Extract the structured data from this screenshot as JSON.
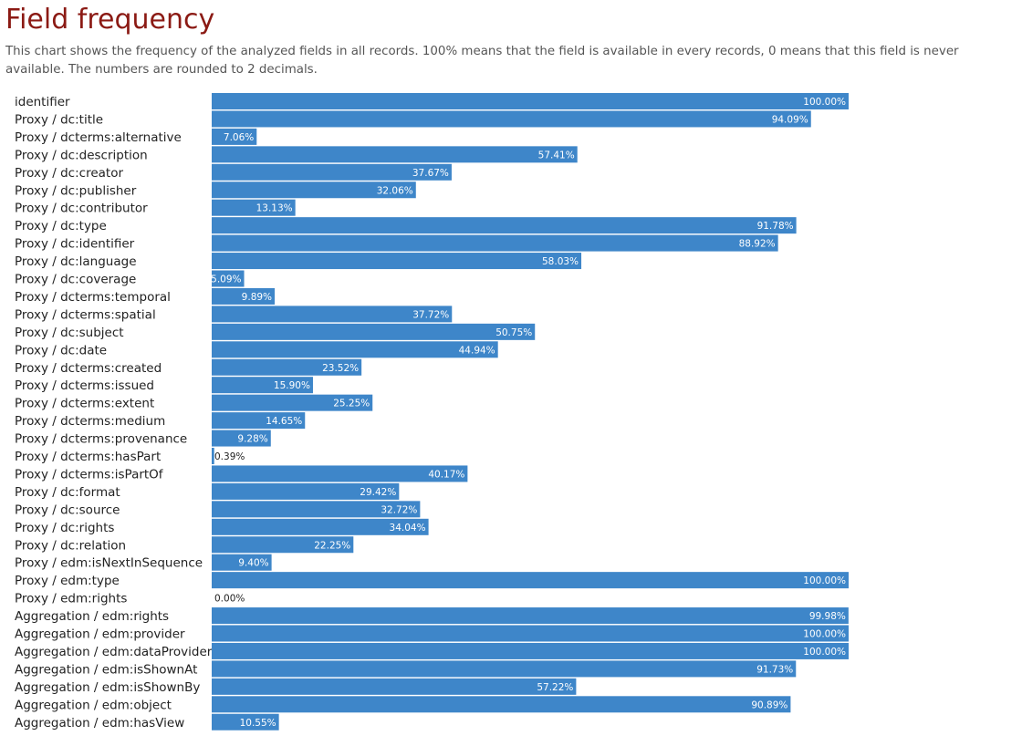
{
  "page": {
    "title": "Field frequency",
    "description": "This chart shows the frequency of the analyzed fields in all records. 100% means that the field is available in every records, 0 means that this field is never available. The numbers are rounded to 2 decimals."
  },
  "colors": {
    "bar": "#3e86c9",
    "title": "#8b1a14",
    "bar_text": "#ffffff",
    "outside_text": "#222222"
  },
  "chart_data": {
    "type": "bar",
    "orientation": "horizontal",
    "xlim": [
      0,
      100
    ],
    "unit": "%",
    "grid": false,
    "categories": [
      "identifier",
      "Proxy / dc:title",
      "Proxy / dcterms:alternative",
      "Proxy / dc:description",
      "Proxy / dc:creator",
      "Proxy / dc:publisher",
      "Proxy / dc:contributor",
      "Proxy / dc:type",
      "Proxy / dc:identifier",
      "Proxy / dc:language",
      "Proxy / dc:coverage",
      "Proxy / dcterms:temporal",
      "Proxy / dcterms:spatial",
      "Proxy / dc:subject",
      "Proxy / dc:date",
      "Proxy / dcterms:created",
      "Proxy / dcterms:issued",
      "Proxy / dcterms:extent",
      "Proxy / dcterms:medium",
      "Proxy / dcterms:provenance",
      "Proxy / dcterms:hasPart",
      "Proxy / dcterms:isPartOf",
      "Proxy / dc:format",
      "Proxy / dc:source",
      "Proxy / dc:rights",
      "Proxy / dc:relation",
      "Proxy / edm:isNextInSequence",
      "Proxy / edm:type",
      "Proxy / edm:rights",
      "Aggregation / edm:rights",
      "Aggregation / edm:provider",
      "Aggregation / edm:dataProvider",
      "Aggregation / edm:isShownAt",
      "Aggregation / edm:isShownBy",
      "Aggregation / edm:object",
      "Aggregation / edm:hasView"
    ],
    "values": [
      100.0,
      94.09,
      7.06,
      57.41,
      37.67,
      32.06,
      13.13,
      91.78,
      88.92,
      58.03,
      5.09,
      9.89,
      37.72,
      50.75,
      44.94,
      23.52,
      15.9,
      25.25,
      14.65,
      9.28,
      0.39,
      40.17,
      29.42,
      32.72,
      34.04,
      22.25,
      9.4,
      100.0,
      0.0,
      99.98,
      100.0,
      100.0,
      91.73,
      57.22,
      90.89,
      10.55
    ],
    "value_labels": [
      "100.00%",
      "94.09%",
      "7.06%",
      "57.41%",
      "37.67%",
      "32.06%",
      "13.13%",
      "91.78%",
      "88.92%",
      "58.03%",
      "5.09%",
      "9.89%",
      "37.72%",
      "50.75%",
      "44.94%",
      "23.52%",
      "15.90%",
      "25.25%",
      "14.65%",
      "9.28%",
      "0.39%",
      "40.17%",
      "29.42%",
      "32.72%",
      "34.04%",
      "22.25%",
      "9.40%",
      "100.00%",
      "0.00%",
      "99.98%",
      "100.00%",
      "100.00%",
      "91.73%",
      "57.22%",
      "90.89%",
      "10.55%"
    ]
  }
}
